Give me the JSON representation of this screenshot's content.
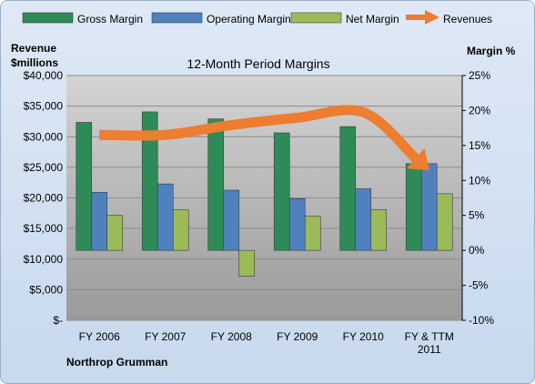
{
  "chart_data": {
    "type": "bar",
    "title": "12-Month Period Margins",
    "categories": [
      [
        "FY 2006"
      ],
      [
        "FY 2007"
      ],
      [
        "FY 2008"
      ],
      [
        "FY 2009"
      ],
      [
        "FY 2010"
      ],
      [
        "FY & TTM",
        "2011"
      ]
    ],
    "series": [
      {
        "name": "Gross Margin",
        "color": "#2e8b57",
        "values": [
          18.3,
          19.8,
          18.8,
          16.8,
          17.7,
          12.4
        ]
      },
      {
        "name": "Operating Margin",
        "color": "#4f81bd",
        "values": [
          8.3,
          9.5,
          8.6,
          7.4,
          8.8,
          12.4
        ]
      },
      {
        "name": "Net Margin",
        "color": "#9bbb59",
        "values": [
          5.0,
          5.8,
          -3.7,
          4.9,
          5.8,
          8.1
        ]
      }
    ],
    "revenues": {
      "name": "Revenues",
      "color": "#ed7d31",
      "values": [
        30300,
        30300,
        31900,
        33100,
        34000,
        24500
      ]
    },
    "left_axis": {
      "label_lines": [
        "Revenue",
        "$millions"
      ],
      "ylim": [
        0,
        40000
      ],
      "ticks": [
        "$-",
        "$5,000",
        "$10,000",
        "$15,000",
        "$20,000",
        "$25,000",
        "$30,000",
        "$35,000",
        "$40,000"
      ]
    },
    "right_axis": {
      "label": "Margin %",
      "ylim": [
        -10,
        25
      ],
      "ticks": [
        "-10%",
        "-5%",
        "0%",
        "5%",
        "10%",
        "15%",
        "20%",
        "25%"
      ]
    },
    "legend_position": "top",
    "grid": true
  },
  "company": "Northrop Grumman"
}
